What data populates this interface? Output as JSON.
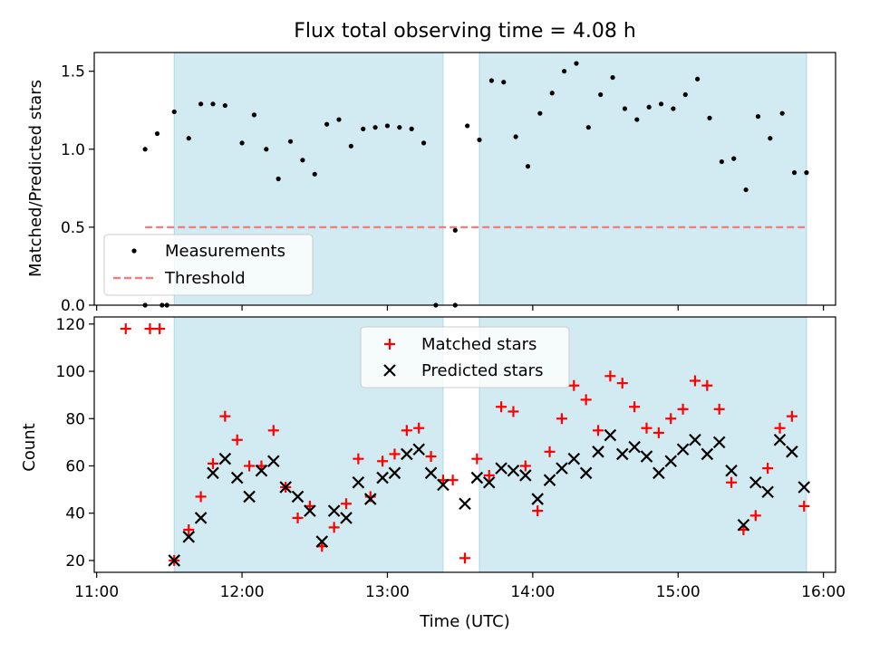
{
  "title": "Flux total observing time = 4.08 h",
  "colors": {
    "measurements": "#000000",
    "threshold": "#f08080",
    "matched": "#ff0000",
    "predicted": "#000000",
    "span": "#add8e6"
  },
  "chart_data": [
    {
      "type": "scatter",
      "name": "top",
      "title": "Flux total observing time = 4.08 h",
      "xlabel": "",
      "ylabel": "Matched/Predicted stars",
      "xlim": [
        "10:59",
        "16:05"
      ],
      "ylim": [
        0,
        1.62
      ],
      "yticks": [
        "0.0",
        "0.5",
        "1.0",
        "1.5"
      ],
      "ytick_values": [
        0,
        0.5,
        1.0,
        1.5
      ],
      "legend": {
        "location": "lower left",
        "entries": [
          "Measurements",
          "Threshold"
        ]
      },
      "shaded_spans": [
        [
          "11:32",
          "13:23"
        ],
        [
          "13:38",
          "15:53"
        ]
      ],
      "threshold": {
        "name": "Threshold",
        "y": 0.5,
        "x": [
          "11:20",
          "15:53"
        ]
      },
      "series": [
        {
          "name": "Measurements",
          "marker": "dot",
          "x": [
            "11:20",
            "11:25",
            "11:32",
            "11:38",
            "11:43",
            "11:48",
            "11:53",
            "12:00",
            "12:05",
            "12:10",
            "12:15",
            "12:20",
            "12:25",
            "12:30",
            "12:35",
            "12:40",
            "12:45",
            "12:50",
            "12:55",
            "13:00",
            "13:05",
            "13:10",
            "13:15",
            "13:20",
            "13:28",
            "13:33",
            "13:38",
            "13:43",
            "13:48",
            "13:53",
            "13:58",
            "14:03",
            "14:08",
            "14:13",
            "14:18",
            "14:23",
            "14:28",
            "14:33",
            "14:38",
            "14:43",
            "14:48",
            "14:53",
            "14:58",
            "15:03",
            "15:08",
            "15:13",
            "15:18",
            "15:23",
            "15:28",
            "15:33",
            "15:38",
            "15:43",
            "15:48",
            "15:53"
          ],
          "y": [
            1.0,
            1.1,
            1.24,
            1.07,
            1.29,
            1.29,
            1.28,
            1.04,
            1.22,
            1.0,
            0.81,
            1.05,
            0.93,
            0.84,
            1.16,
            1.19,
            1.02,
            1.13,
            1.14,
            1.15,
            1.14,
            1.13,
            1.04,
            0.0,
            0.48,
            1.15,
            1.06,
            1.44,
            1.43,
            1.08,
            0.89,
            1.23,
            1.36,
            1.5,
            1.55,
            1.14,
            1.35,
            1.46,
            1.26,
            1.19,
            1.27,
            1.29,
            1.26,
            1.35,
            1.45,
            1.2,
            0.92,
            0.94,
            0.74,
            1.21,
            1.07,
            1.23,
            0.85,
            0.85
          ]
        }
      ],
      "zero_points_x": [
        "11:20",
        "11:27",
        "11:29",
        "13:28"
      ]
    },
    {
      "type": "scatter",
      "name": "bottom",
      "xlabel": "Time (UTC)",
      "ylabel": "Count",
      "xlim": [
        "10:59",
        "16:05"
      ],
      "ylim": [
        15,
        123
      ],
      "xticks": [
        "11:00",
        "12:00",
        "13:00",
        "14:00",
        "15:00",
        "16:00"
      ],
      "yticks": [
        "20",
        "40",
        "60",
        "80",
        "100",
        "120"
      ],
      "ytick_values": [
        20,
        40,
        60,
        80,
        100,
        120
      ],
      "legend": {
        "location": "upper center",
        "entries": [
          "Matched stars",
          "Predicted stars"
        ]
      },
      "shaded_spans": [
        [
          "11:32",
          "13:23"
        ],
        [
          "13:38",
          "15:53"
        ]
      ],
      "series": [
        {
          "name": "Matched stars",
          "marker": "plus",
          "x": [
            "11:12",
            "11:22",
            "11:26",
            "11:32",
            "11:38",
            "11:43",
            "11:48",
            "11:53",
            "11:58",
            "12:03",
            "12:08",
            "12:13",
            "12:18",
            "12:23",
            "12:28",
            "12:33",
            "12:38",
            "12:43",
            "12:48",
            "12:53",
            "12:58",
            "13:03",
            "13:08",
            "13:13",
            "13:18",
            "13:23",
            "13:27",
            "13:32",
            "13:37",
            "13:42",
            "13:47",
            "13:52",
            "13:57",
            "14:02",
            "14:07",
            "14:12",
            "14:17",
            "14:22",
            "14:27",
            "14:32",
            "14:37",
            "14:42",
            "14:47",
            "14:52",
            "14:57",
            "15:02",
            "15:07",
            "15:12",
            "15:17",
            "15:22",
            "15:27",
            "15:32",
            "15:37",
            "15:42",
            "15:47",
            "15:52"
          ],
          "y": [
            118,
            118,
            118,
            20,
            33,
            47,
            61,
            81,
            71,
            60,
            60,
            75,
            51,
            38,
            43,
            26,
            34,
            44,
            63,
            47,
            62,
            65,
            75,
            76,
            64,
            54,
            54,
            21,
            63,
            56,
            85,
            83,
            60,
            41,
            66,
            80,
            94,
            88,
            75,
            98,
            95,
            85,
            76,
            74,
            80,
            84,
            96,
            94,
            84,
            53,
            33,
            39,
            59,
            76,
            81,
            43
          ]
        },
        {
          "name": "Predicted stars",
          "marker": "x",
          "x": [
            "11:32",
            "11:38",
            "11:43",
            "11:48",
            "11:53",
            "11:58",
            "12:03",
            "12:08",
            "12:13",
            "12:18",
            "12:23",
            "12:28",
            "12:33",
            "12:38",
            "12:43",
            "12:48",
            "12:53",
            "12:58",
            "13:03",
            "13:08",
            "13:13",
            "13:18",
            "13:23",
            "13:32",
            "13:37",
            "13:42",
            "13:47",
            "13:52",
            "13:57",
            "14:02",
            "14:07",
            "14:12",
            "14:17",
            "14:22",
            "14:27",
            "14:32",
            "14:37",
            "14:42",
            "14:47",
            "14:52",
            "14:57",
            "15:02",
            "15:07",
            "15:12",
            "15:17",
            "15:22",
            "15:27",
            "15:32",
            "15:37",
            "15:42",
            "15:47",
            "15:52"
          ],
          "y": [
            20,
            30,
            38,
            57,
            63,
            55,
            47,
            58,
            62,
            51,
            47,
            41,
            28,
            41,
            38,
            53,
            46,
            55,
            57,
            65,
            67,
            57,
            52,
            44,
            55,
            53,
            59,
            58,
            56,
            46,
            54,
            59,
            63,
            57,
            66,
            73,
            65,
            68,
            64,
            57,
            62,
            67,
            71,
            65,
            70,
            58,
            35,
            53,
            49,
            71,
            66,
            51
          ]
        }
      ]
    }
  ]
}
